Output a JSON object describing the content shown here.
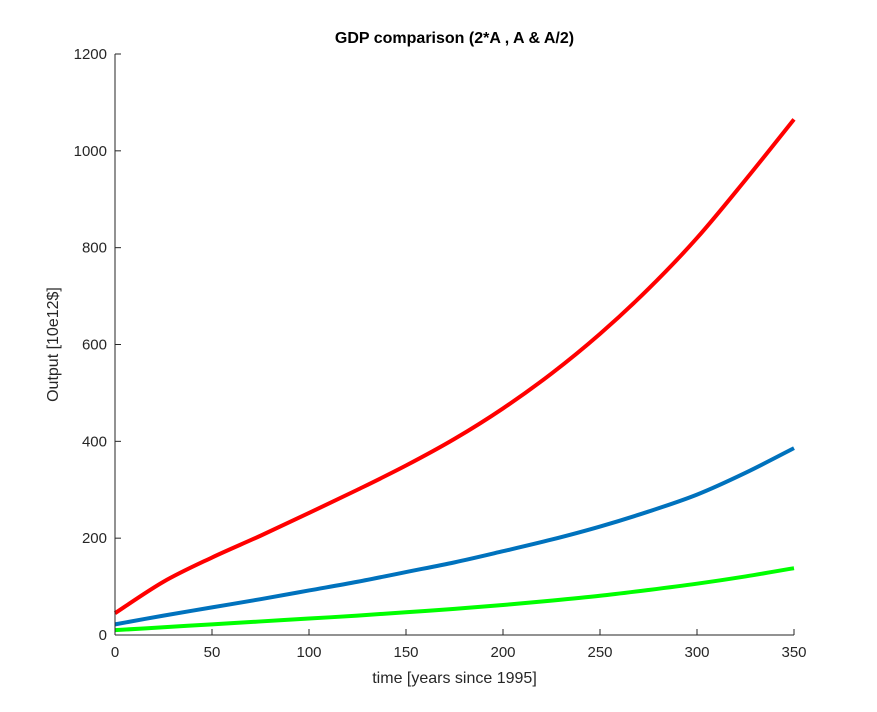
{
  "chart_data": {
    "type": "line",
    "title": "GDP comparison (2*A , A & A/2)",
    "xlabel": "time [years since 1995]",
    "ylabel": "Output [10e12$]",
    "xlim": [
      0,
      350
    ],
    "ylim": [
      0,
      1200
    ],
    "xticks": [
      0,
      50,
      100,
      150,
      200,
      250,
      300,
      350
    ],
    "yticks": [
      0,
      200,
      400,
      600,
      800,
      1000,
      1200
    ],
    "grid": false,
    "legend": false,
    "x": [
      0,
      25,
      50,
      75,
      100,
      125,
      150,
      175,
      200,
      225,
      250,
      275,
      300,
      325,
      350
    ],
    "series": [
      {
        "color": "#ff0000",
        "values": [
          45,
          110,
          160,
          205,
          252,
          300,
          350,
          405,
          468,
          540,
          622,
          715,
          820,
          940,
          1065
        ]
      },
      {
        "color": "#0072bd",
        "values": [
          22,
          40,
          57,
          74,
          92,
          110,
          130,
          150,
          173,
          197,
          224,
          255,
          290,
          335,
          386
        ]
      },
      {
        "color": "#00ff00",
        "values": [
          10,
          16,
          22,
          28,
          34,
          40,
          47,
          54,
          62,
          71,
          81,
          93,
          106,
          121,
          138
        ]
      }
    ]
  }
}
